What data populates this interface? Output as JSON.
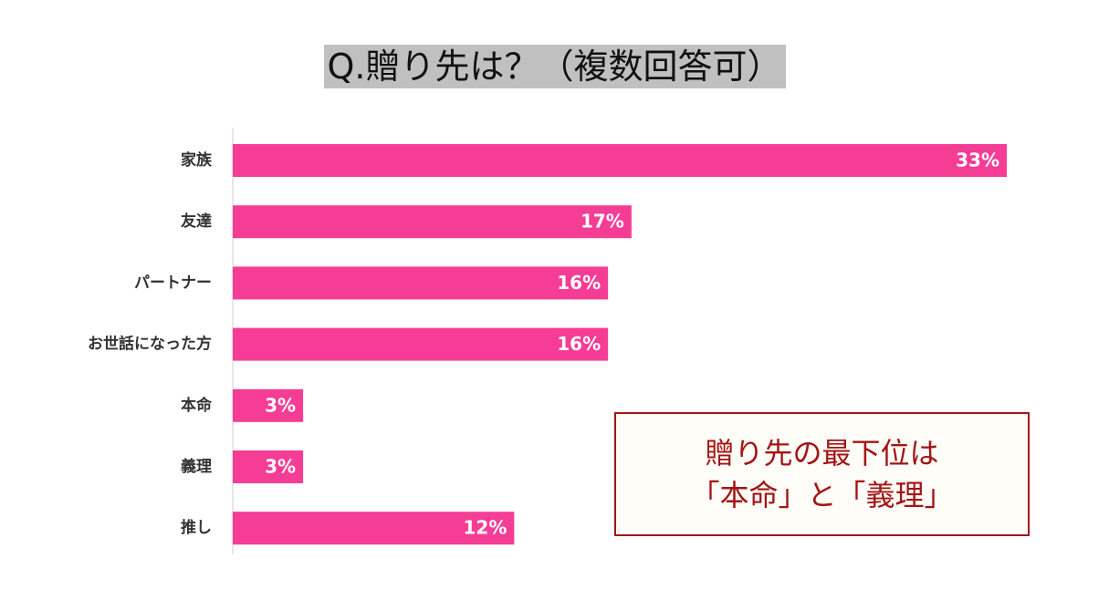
{
  "chart_data": {
    "type": "bar",
    "orientation": "horizontal",
    "title": "Q.贈り先は？（複数回答可）",
    "categories": [
      "家族",
      "友達",
      "パートナー",
      "お世話になった方",
      "本命",
      "義理",
      "推し"
    ],
    "values": [
      33,
      17,
      16,
      16,
      3,
      3,
      12
    ],
    "value_labels": [
      "33%",
      "17%",
      "16%",
      "16%",
      "3%",
      "3%",
      "12%"
    ],
    "color": "#f53d95",
    "annotation": [
      "贈り先の最下位は",
      "「本命」と「義理」"
    ]
  }
}
